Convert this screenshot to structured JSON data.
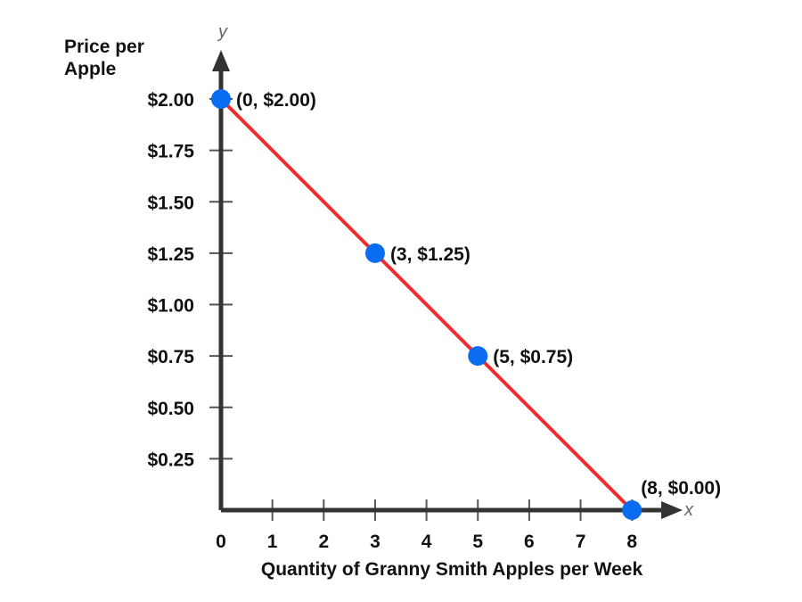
{
  "chart_data": {
    "type": "line",
    "xlabel": "Quantity of Granny Smith Apples per Week",
    "ylabel": "Price per Apple",
    "ylabel_lines": [
      "Price per",
      "Apple"
    ],
    "x_axis_letter": "x",
    "y_axis_letter": "y",
    "xlim": [
      0,
      8
    ],
    "ylim": [
      0,
      2
    ],
    "x_ticks": [
      0,
      1,
      2,
      3,
      4,
      5,
      6,
      7,
      8
    ],
    "x_tick_labels": [
      "0",
      "1",
      "2",
      "3",
      "4",
      "5",
      "6",
      "7",
      "8"
    ],
    "y_ticks": [
      2.0,
      1.75,
      1.5,
      1.25,
      1.0,
      0.75,
      0.5,
      0.25
    ],
    "y_tick_labels": [
      "$2.00",
      "$1.75",
      "$1.50",
      "$1.25",
      "$1.00",
      "$0.75",
      "$0.50",
      "$0.25"
    ],
    "grid": false,
    "series": [
      {
        "x": [
          0,
          3,
          5,
          8
        ],
        "y": [
          2.0,
          1.25,
          0.75,
          0.0
        ],
        "point_labels": [
          "(0, $2.00)",
          "(3, $1.25)",
          "(5, $0.75)",
          "(8, $0.00)"
        ],
        "line_color": "#f02b2b",
        "marker_color": "#0a6cf0"
      }
    ],
    "axis_color": "#333333"
  }
}
